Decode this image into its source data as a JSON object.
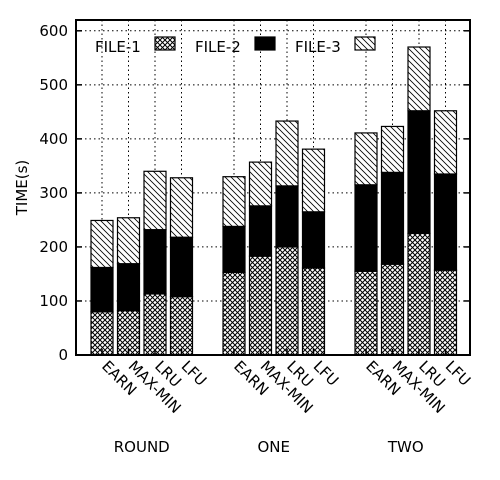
{
  "chart_data": {
    "type": "bar",
    "stacked": true,
    "ylabel": "TIME(s)",
    "ylim": [
      0,
      620
    ],
    "yticks": [
      0,
      100,
      200,
      300,
      400,
      500,
      600
    ],
    "grid": true,
    "legend_position": "top-left",
    "groups": [
      {
        "name": "ROUND",
        "categories": [
          "EARN",
          "MAX-MIN",
          "LRU",
          "LFU"
        ]
      },
      {
        "name": "ONE",
        "categories": [
          "EARN",
          "MAX-MIN",
          "LRU",
          "LFU"
        ]
      },
      {
        "name": "TWO",
        "categories": [
          "EARN",
          "MAX-MIN",
          "LRU",
          "LFU"
        ]
      }
    ],
    "series": [
      {
        "name": "FILE-1",
        "pattern": "crosshatch",
        "values": [
          [
            80,
            82,
            113,
            108
          ],
          [
            153,
            183,
            200,
            161
          ],
          [
            155,
            168,
            225,
            157
          ]
        ]
      },
      {
        "name": "FILE-2",
        "pattern": "solid",
        "values": [
          [
            82,
            87,
            119,
            110
          ],
          [
            85,
            93,
            113,
            104
          ],
          [
            160,
            170,
            227,
            178
          ]
        ]
      },
      {
        "name": "FILE-3",
        "pattern": "diagonal",
        "values": [
          [
            87,
            85,
            108,
            110
          ],
          [
            92,
            81,
            120,
            116
          ],
          [
            96,
            85,
            118,
            117
          ]
        ]
      }
    ]
  }
}
